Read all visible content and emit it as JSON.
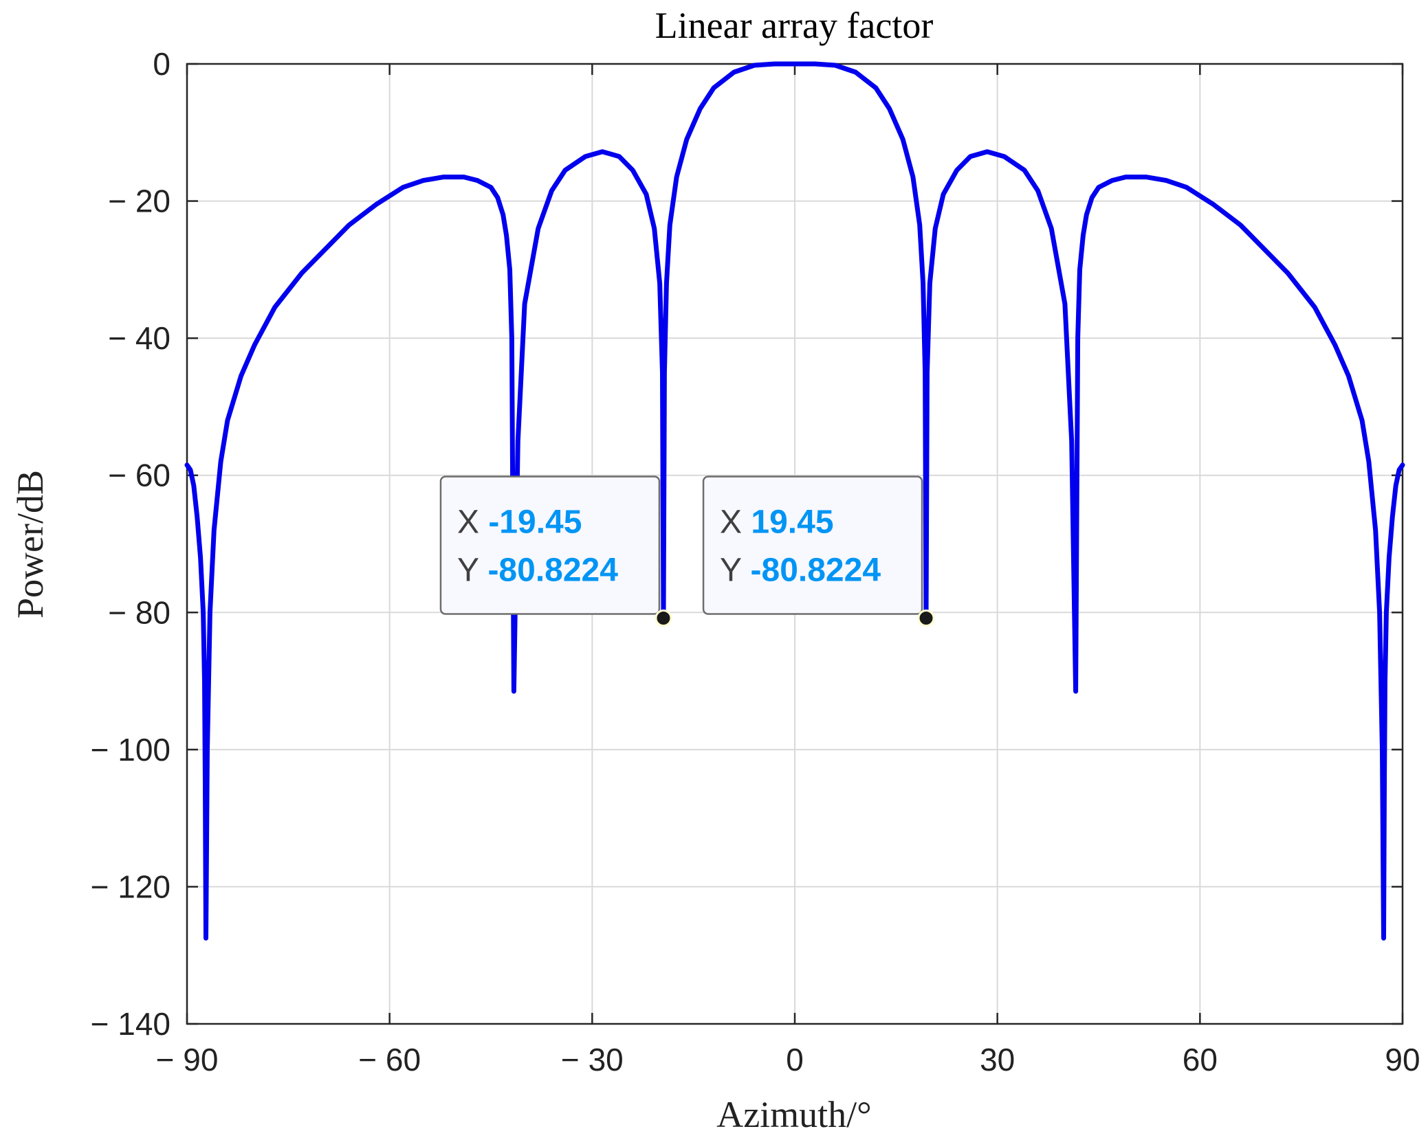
{
  "chart_data": {
    "type": "line",
    "title": "Linear array factor",
    "xlabel": "Azimuth/°",
    "ylabel": "Power/dB",
    "xlim": [
      -90,
      90
    ],
    "ylim": [
      -140,
      0
    ],
    "grid": true,
    "xticks": [
      -90,
      -60,
      -30,
      0,
      30,
      60,
      90
    ],
    "xtick_labels": [
      "− 90",
      "− 60",
      "− 30",
      "0",
      "30",
      "60",
      "90"
    ],
    "yticks": [
      0,
      -20,
      -40,
      -60,
      -80,
      -100,
      -120,
      -140
    ],
    "ytick_labels": [
      "0",
      "− 20",
      "− 40",
      "− 60",
      "− 80",
      "− 100",
      "− 120",
      "− 140"
    ],
    "series": [
      {
        "color": "#0000ee",
        "x": [
          -90,
          -89.5,
          -89,
          -88.5,
          -88,
          -87.6,
          -87.4,
          -87.3,
          -87.2,
          -87.0,
          -86.6,
          -86,
          -85,
          -84,
          -82,
          -80,
          -77,
          -73,
          -70,
          -66,
          -62,
          -58,
          -55,
          -52,
          -49,
          -47,
          -45,
          -44,
          -43.2,
          -42.7,
          -42.2,
          -41.9,
          -41.6,
          -41,
          -40,
          -38,
          -36,
          -34,
          -31,
          -28.5,
          -26,
          -24,
          -22,
          -20.8,
          -20,
          -19.6,
          -19.45,
          -19.3,
          -19,
          -18.5,
          -17.5,
          -16,
          -14,
          -12,
          -9,
          -6,
          -3,
          0,
          3,
          6,
          9,
          12,
          14,
          16,
          17.5,
          18.5,
          19,
          19.3,
          19.45,
          19.6,
          20,
          20.8,
          22,
          24,
          26,
          28.5,
          31,
          34,
          36,
          38,
          40,
          41,
          41.6,
          41.9,
          42.2,
          42.7,
          43.2,
          44,
          45,
          47,
          49,
          52,
          55,
          58,
          62,
          66,
          70,
          73,
          77,
          80,
          82,
          84,
          85,
          86,
          86.6,
          87.0,
          87.2,
          87.3,
          87.4,
          87.6,
          88,
          88.5,
          89,
          89.5,
          90
        ],
        "y": [
          -58.5,
          -59.2,
          -61.5,
          -66,
          -72,
          -80,
          -90,
          -105,
          -127.5,
          -100,
          -80,
          -68,
          -58,
          -52,
          -45.5,
          -41,
          -35.5,
          -30.5,
          -27.5,
          -23.5,
          -20.5,
          -18,
          -17,
          -16.5,
          -16.5,
          -17,
          -18,
          -19.5,
          -22,
          -25,
          -30,
          -40,
          -91.5,
          -55,
          -35,
          -24,
          -18.5,
          -15.5,
          -13.5,
          -12.8,
          -13.5,
          -15.5,
          -19,
          -24,
          -32,
          -45,
          -80.8224,
          -45,
          -32,
          -23.5,
          -16.5,
          -11,
          -6.5,
          -3.5,
          -1.2,
          -0.2,
          0,
          0,
          0,
          -0.2,
          -1.2,
          -3.5,
          -6.5,
          -11,
          -16.5,
          -23.5,
          -32,
          -45,
          -80.8224,
          -45,
          -32,
          -24,
          -19,
          -15.5,
          -13.5,
          -12.8,
          -13.5,
          -15.5,
          -18.5,
          -24,
          -35,
          -55,
          -91.5,
          -40,
          -30,
          -25,
          -22,
          -19.5,
          -18,
          -17,
          -16.5,
          -16.5,
          -17,
          -18,
          -20.5,
          -23.5,
          -27.5,
          -30.5,
          -35.5,
          -41,
          -45.5,
          -52,
          -58,
          -68,
          -80,
          -100,
          -127.5,
          -105,
          -90,
          -80,
          -72,
          -66,
          -61.5,
          -59.2,
          -58.5
        ]
      }
    ],
    "annotations": [
      {
        "x": -19.45,
        "y": -80.8224,
        "x_label": "X",
        "x_text": "-19.45",
        "y_label": "Y",
        "y_text": "-80.8224"
      },
      {
        "x": 19.45,
        "y": -80.8224,
        "x_label": "X",
        "x_text": "19.45",
        "y_label": "Y",
        "y_text": "-80.8224"
      }
    ]
  }
}
